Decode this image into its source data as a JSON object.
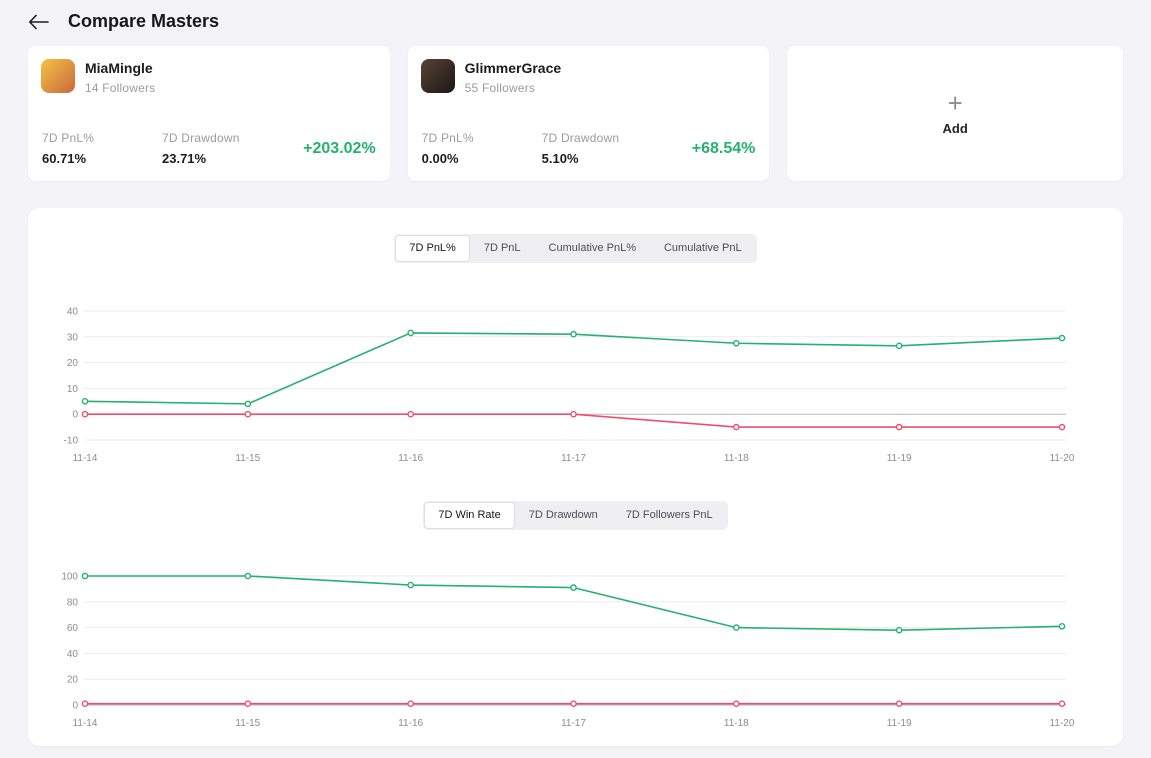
{
  "header": {
    "title": "Compare Masters",
    "back_icon": "left-arrow"
  },
  "colors": {
    "green": "#25b170",
    "red": "#ee4e6e",
    "grid": "#ececf0",
    "zero_line": "#b9b9c0",
    "tick_text": "#8c8c93"
  },
  "cards": [
    {
      "name": "MiaMingle",
      "followers": "14 Followers",
      "pnl_label": "7D PnL%",
      "pnl_value": "60.71%",
      "dd_label": "7D Drawdown",
      "dd_value": "23.71%",
      "roi": "+203.02%",
      "avatar_icon": "miamingle-avatar",
      "avatar_colors": [
        "#f6c244",
        "#c9683c"
      ]
    },
    {
      "name": "GlimmerGrace",
      "followers": "55 Followers",
      "pnl_label": "7D PnL%",
      "pnl_value": "0.00%",
      "dd_label": "7D Drawdown",
      "dd_value": "5.10%",
      "roi": "+68.54%",
      "avatar_icon": "glimmergrace-avatar",
      "avatar_colors": [
        "#584336",
        "#1a1715"
      ]
    }
  ],
  "add_card": {
    "label": "Add",
    "icon": "plus-icon"
  },
  "tabs_top": [
    {
      "label": "7D PnL%",
      "selected": true
    },
    {
      "label": "7D PnL",
      "selected": false
    },
    {
      "label": "Cumulative PnL%",
      "selected": false
    },
    {
      "label": "Cumulative PnL",
      "selected": false
    }
  ],
  "tabs_bottom": [
    {
      "label": "7D Win Rate",
      "selected": true
    },
    {
      "label": "7D Drawdown",
      "selected": false
    },
    {
      "label": "7D Followers PnL",
      "selected": false
    }
  ],
  "chart_data": [
    {
      "type": "line",
      "title": "7D PnL%",
      "x": [
        "11-14",
        "11-15",
        "11-16",
        "11-17",
        "11-18",
        "11-19",
        "11-20"
      ],
      "series": [
        {
          "name": "MiaMingle",
          "color": "#25b170",
          "values": [
            5,
            4,
            31.5,
            31,
            27.5,
            26.5,
            29.5
          ]
        },
        {
          "name": "GlimmerGrace",
          "color": "#ee4e6e",
          "values": [
            0,
            0,
            0,
            0,
            -5,
            -5,
            -5
          ]
        }
      ],
      "ylim": [
        -10,
        40
      ],
      "yticks": [
        40,
        30,
        20,
        10,
        0,
        -10
      ],
      "grid": true,
      "legend": "none"
    },
    {
      "type": "line",
      "title": "7D Win Rate",
      "x": [
        "11-14",
        "11-15",
        "11-16",
        "11-17",
        "11-18",
        "11-19",
        "11-20"
      ],
      "series": [
        {
          "name": "MiaMingle",
          "color": "#25b170",
          "values": [
            100,
            100,
            93,
            91,
            60,
            58,
            61
          ]
        },
        {
          "name": "GlimmerGrace",
          "color": "#ee4e6e",
          "values": [
            1,
            1,
            1,
            1,
            1,
            1,
            1
          ]
        }
      ],
      "ylim": [
        0,
        100
      ],
      "yticks": [
        100,
        80,
        60,
        40,
        20,
        0
      ],
      "grid": true,
      "legend": "none"
    }
  ]
}
